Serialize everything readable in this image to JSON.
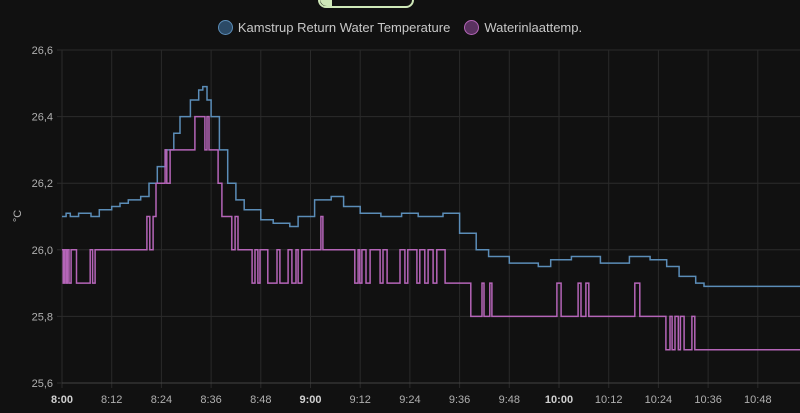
{
  "chart_data": {
    "type": "line",
    "step": true,
    "ylabel": "°C",
    "ylim": [
      25.6,
      26.6
    ],
    "yticks": [
      "26,6",
      "26,4",
      "26,2",
      "26,0",
      "25,8",
      "25,6"
    ],
    "ytick_values": [
      26.6,
      26.4,
      26.2,
      26.0,
      25.8,
      25.6
    ],
    "xlim_minutes_from_8": [
      0,
      178
    ],
    "xticks": [
      {
        "label": "8:00",
        "bold": true
      },
      {
        "label": "8:12"
      },
      {
        "label": "8:24"
      },
      {
        "label": "8:36"
      },
      {
        "label": "8:48"
      },
      {
        "label": "9:00",
        "bold": true
      },
      {
        "label": "9:12"
      },
      {
        "label": "9:24"
      },
      {
        "label": "9:36"
      },
      {
        "label": "9:48"
      },
      {
        "label": "10:00",
        "bold": true
      },
      {
        "label": "10:12"
      },
      {
        "label": "10:24"
      },
      {
        "label": "10:36"
      },
      {
        "label": "10:48"
      }
    ],
    "legend_position": "top-center",
    "series": [
      {
        "name": "Kamstrup Return Water Temperature",
        "color": "#5b8db8",
        "fill": "#2b4a66",
        "points": [
          [
            0,
            26.1
          ],
          [
            1,
            26.11
          ],
          [
            2,
            26.1
          ],
          [
            4,
            26.11
          ],
          [
            7,
            26.1
          ],
          [
            9,
            26.12
          ],
          [
            12,
            26.13
          ],
          [
            14,
            26.14
          ],
          [
            16,
            26.15
          ],
          [
            19,
            26.16
          ],
          [
            21,
            26.2
          ],
          [
            23,
            26.25
          ],
          [
            25,
            26.3
          ],
          [
            27,
            26.35
          ],
          [
            28.5,
            26.4
          ],
          [
            31,
            26.45
          ],
          [
            33,
            26.48
          ],
          [
            34,
            26.49
          ],
          [
            35,
            26.45
          ],
          [
            36,
            26.4
          ],
          [
            38,
            26.3
          ],
          [
            40,
            26.2
          ],
          [
            42,
            26.15
          ],
          [
            44,
            26.12
          ],
          [
            48,
            26.09
          ],
          [
            51,
            26.08
          ],
          [
            55,
            26.07
          ],
          [
            57,
            26.1
          ],
          [
            61,
            26.15
          ],
          [
            65,
            26.16
          ],
          [
            68,
            26.13
          ],
          [
            72,
            26.11
          ],
          [
            77,
            26.1
          ],
          [
            82,
            26.11
          ],
          [
            86,
            26.1
          ],
          [
            92,
            26.11
          ],
          [
            96,
            26.05
          ],
          [
            100,
            26.0
          ],
          [
            103,
            25.98
          ],
          [
            108,
            25.96
          ],
          [
            115,
            25.95
          ],
          [
            118,
            25.97
          ],
          [
            123,
            25.98
          ],
          [
            130,
            25.96
          ],
          [
            137,
            25.98
          ],
          [
            142,
            25.97
          ],
          [
            146,
            25.95
          ],
          [
            149,
            25.92
          ],
          [
            153,
            25.9
          ],
          [
            155,
            25.89
          ],
          [
            178,
            25.89
          ]
        ]
      },
      {
        "name": "Waterinlaattemp.",
        "color": "#b565b8",
        "fill": "#5a3260",
        "points": [
          [
            0,
            26.0
          ],
          [
            0.3,
            25.9
          ],
          [
            0.6,
            26.0
          ],
          [
            1.0,
            25.9
          ],
          [
            1.3,
            26.0
          ],
          [
            1.7,
            25.9
          ],
          [
            2.2,
            26.0
          ],
          [
            3.5,
            25.9
          ],
          [
            6.8,
            26.0
          ],
          [
            7.4,
            25.9
          ],
          [
            8.0,
            26.0
          ],
          [
            20.5,
            26.1
          ],
          [
            21.2,
            26.0
          ],
          [
            22.0,
            26.1
          ],
          [
            22.7,
            26.2
          ],
          [
            24.9,
            26.3
          ],
          [
            25.3,
            26.2
          ],
          [
            26.1,
            26.3
          ],
          [
            32.1,
            26.4
          ],
          [
            34.5,
            26.3
          ],
          [
            35.0,
            26.4
          ],
          [
            35.5,
            26.3
          ],
          [
            37.7,
            26.2
          ],
          [
            38.6,
            26.1
          ],
          [
            41.0,
            26.0
          ],
          [
            41.8,
            26.1
          ],
          [
            42.5,
            26.0
          ],
          [
            45.9,
            25.9
          ],
          [
            46.6,
            26.0
          ],
          [
            47.3,
            25.9
          ],
          [
            47.8,
            26.0
          ],
          [
            49.7,
            25.9
          ],
          [
            51.9,
            26.0
          ],
          [
            52.6,
            25.9
          ],
          [
            54.6,
            26.0
          ],
          [
            55.5,
            25.9
          ],
          [
            56.5,
            26.0
          ],
          [
            57.0,
            25.9
          ],
          [
            57.9,
            26.0
          ],
          [
            62.5,
            26.1
          ],
          [
            63.0,
            26.0
          ],
          [
            70.7,
            25.9
          ],
          [
            71.5,
            26.0
          ],
          [
            71.9,
            25.9
          ],
          [
            72.4,
            26.0
          ],
          [
            73.4,
            25.9
          ],
          [
            74.4,
            26.0
          ],
          [
            76.8,
            25.9
          ],
          [
            77.5,
            26.0
          ],
          [
            78.5,
            25.9
          ],
          [
            81.6,
            26.0
          ],
          [
            82.8,
            25.9
          ],
          [
            83.5,
            26.0
          ],
          [
            85.7,
            25.9
          ],
          [
            86.4,
            26.0
          ],
          [
            87.6,
            25.9
          ],
          [
            88.4,
            26.0
          ],
          [
            89.6,
            25.9
          ],
          [
            90.5,
            26.0
          ],
          [
            92.5,
            25.9
          ],
          [
            98.7,
            25.8
          ],
          [
            101.4,
            25.9
          ],
          [
            101.9,
            25.8
          ],
          [
            103.3,
            25.9
          ],
          [
            103.8,
            25.8
          ],
          [
            119.5,
            25.9
          ],
          [
            120.5,
            25.8
          ],
          [
            124.6,
            25.9
          ],
          [
            125.3,
            25.8
          ],
          [
            126.5,
            25.9
          ],
          [
            127.2,
            25.8
          ],
          [
            138.3,
            25.9
          ],
          [
            139.5,
            25.8
          ],
          [
            145.8,
            25.7
          ],
          [
            146.8,
            25.8
          ],
          [
            147.3,
            25.7
          ],
          [
            148.0,
            25.8
          ],
          [
            148.8,
            25.7
          ],
          [
            149.3,
            25.8
          ],
          [
            150.2,
            25.7
          ],
          [
            152.1,
            25.8
          ],
          [
            152.8,
            25.7
          ],
          [
            178,
            25.7
          ]
        ]
      }
    ]
  }
}
